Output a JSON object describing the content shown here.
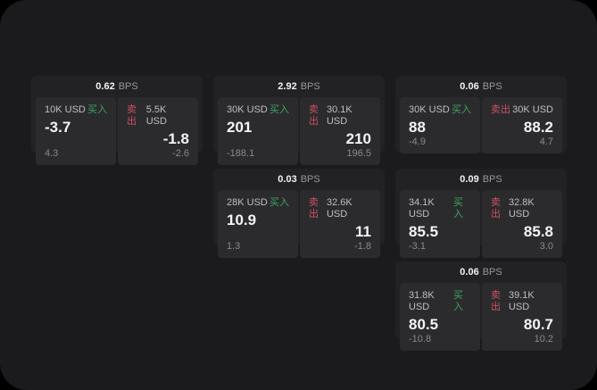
{
  "units": {
    "bps": "BPS"
  },
  "labels": {
    "buy": "买入",
    "sell": "卖出"
  },
  "colors": {
    "background": "#000000",
    "window": "#1b1b1d",
    "card": "#222224",
    "tile": "#2b2b2d",
    "buy_accent": "#3ea564",
    "sell_accent": "#cc5164",
    "primary_text": "#f4f4f5",
    "muted_text": "#8a8a8e"
  },
  "cards": [
    {
      "bps": "0.62",
      "buy": {
        "amount": "10K USD",
        "price": "-3.7",
        "delta": "4.3"
      },
      "sell": {
        "amount": "5.5K USD",
        "price": "-1.8",
        "delta": "-2.6"
      }
    },
    {
      "bps": "2.92",
      "buy": {
        "amount": "30K USD",
        "price": "201",
        "delta": "-188.1"
      },
      "sell": {
        "amount": "30.1K USD",
        "price": "210",
        "delta": "196.5"
      }
    },
    {
      "bps": "0.06",
      "buy": {
        "amount": "30K USD",
        "price": "88",
        "delta": "-4.9"
      },
      "sell": {
        "amount": "30K USD",
        "price": "88.2",
        "delta": "4.7"
      }
    },
    {
      "bps": "0.03",
      "buy": {
        "amount": "28K USD",
        "price": "10.9",
        "delta": "1.3"
      },
      "sell": {
        "amount": "32.6K USD",
        "price": "11",
        "delta": "-1.8"
      }
    },
    {
      "bps": "0.09",
      "buy": {
        "amount": "34.1K USD",
        "price": "85.5",
        "delta": "-3.1"
      },
      "sell": {
        "amount": "32.8K USD",
        "price": "85.8",
        "delta": "3.0"
      }
    },
    {
      "bps": "0.06",
      "buy": {
        "amount": "31.8K USD",
        "price": "80.5",
        "delta": "-10.8"
      },
      "sell": {
        "amount": "39.1K USD",
        "price": "80.7",
        "delta": "10.2"
      }
    }
  ]
}
